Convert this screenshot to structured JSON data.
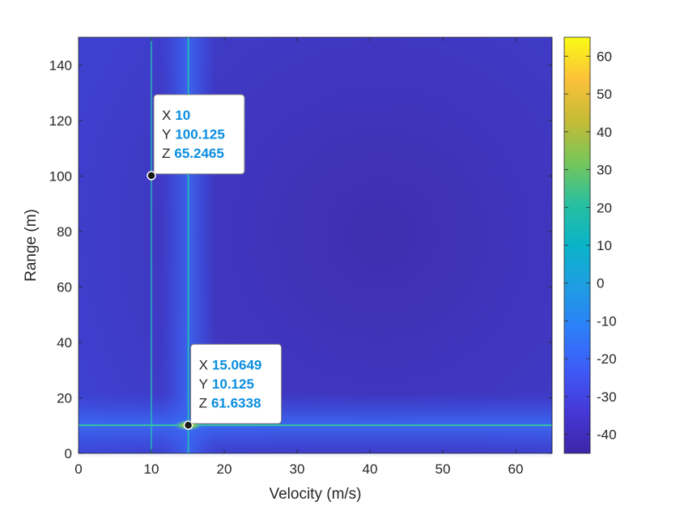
{
  "chart_data": {
    "type": "heatmap",
    "xlabel": "Velocity (m/s)",
    "ylabel": "Range (m)",
    "xlim": [
      0,
      65
    ],
    "ylim": [
      0,
      150
    ],
    "xticks": [
      "0",
      "10",
      "20",
      "30",
      "40",
      "50",
      "60"
    ],
    "yticks": [
      "0",
      "20",
      "40",
      "60",
      "80",
      "100",
      "120",
      "140"
    ],
    "colorbar": {
      "clim": [
        -45,
        65
      ],
      "ticks": [
        "-40",
        "-30",
        "-20",
        "-10",
        "0",
        "10",
        "20",
        "30",
        "40",
        "50",
        "60"
      ]
    },
    "colormap": "parula",
    "peaks": [
      {
        "x": 15.0649,
        "y": 10.125,
        "z": 61.6338
      },
      {
        "x": 10,
        "y": 100.125,
        "z": 65.2465
      }
    ],
    "datatips": [
      {
        "x_letter": "X",
        "x": "10",
        "y_letter": "Y",
        "y": "100.125",
        "z_letter": "Z",
        "z": "65.2465",
        "point": {
          "x": 10,
          "y": 100.125
        }
      },
      {
        "x_letter": "X",
        "x": "15.0649",
        "y_letter": "Y",
        "y": "10.125",
        "z_letter": "Z",
        "z": "61.6338",
        "point": {
          "x": 15.0649,
          "y": 10.125
        }
      }
    ],
    "value_color": "#0a8ee0"
  }
}
